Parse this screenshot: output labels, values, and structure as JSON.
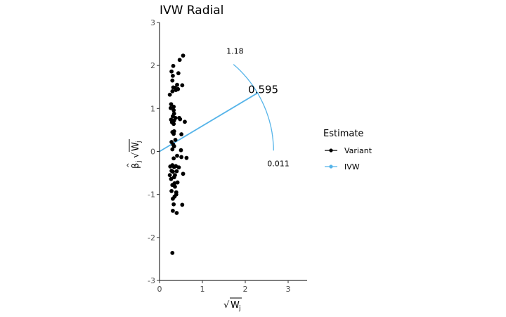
{
  "chart_data": {
    "type": "scatter",
    "title": "IVW Radial",
    "xlabel_base": "W",
    "xlabel_sub": "j",
    "ylabel_beta": "β",
    "ylabel_sub": "j",
    "ylabel_W": "W",
    "ylabel_Wsub": "j",
    "xlim": [
      0,
      3.4
    ],
    "ylim": [
      -3,
      3
    ],
    "xticks": [
      "0",
      "1",
      "2",
      "3"
    ],
    "xtick_values": [
      0,
      1,
      2,
      3
    ],
    "yticks": [
      "-3",
      "-2",
      "-1",
      "0",
      "1",
      "2",
      "3"
    ],
    "ytick_values": [
      -3,
      -2,
      -1,
      0,
      1,
      2,
      3
    ],
    "series": [
      {
        "name": "Variant",
        "color": "#000000",
        "points": [
          [
            0.55,
            2.23
          ],
          [
            0.47,
            2.13
          ],
          [
            0.32,
            1.99
          ],
          [
            0.28,
            1.86
          ],
          [
            0.44,
            1.82
          ],
          [
            0.31,
            1.76
          ],
          [
            0.3,
            1.65
          ],
          [
            0.41,
            1.55
          ],
          [
            0.53,
            1.54
          ],
          [
            0.32,
            1.49
          ],
          [
            0.36,
            1.48
          ],
          [
            0.43,
            1.45
          ],
          [
            0.38,
            1.43
          ],
          [
            0.3,
            1.4
          ],
          [
            0.24,
            1.32
          ],
          [
            0.27,
            1.1
          ],
          [
            0.33,
            1.04
          ],
          [
            0.26,
            1.01
          ],
          [
            0.33,
            0.96
          ],
          [
            0.34,
            0.88
          ],
          [
            0.31,
            0.82
          ],
          [
            0.37,
            0.78
          ],
          [
            0.46,
            0.78
          ],
          [
            0.48,
            0.75
          ],
          [
            0.27,
            0.74
          ],
          [
            0.34,
            0.72
          ],
          [
            0.29,
            0.68
          ],
          [
            0.59,
            0.69
          ],
          [
            0.33,
            0.64
          ],
          [
            0.34,
            0.47
          ],
          [
            0.3,
            0.45
          ],
          [
            0.33,
            0.41
          ],
          [
            0.51,
            0.4
          ],
          [
            0.37,
            0.27
          ],
          [
            0.28,
            0.22
          ],
          [
            0.32,
            0.16
          ],
          [
            0.34,
            0.12
          ],
          [
            0.3,
            0.05
          ],
          [
            0.5,
            0.03
          ],
          [
            0.41,
            -0.1
          ],
          [
            0.51,
            -0.13
          ],
          [
            0.63,
            -0.15
          ],
          [
            0.33,
            -0.16
          ],
          [
            0.25,
            -0.35
          ],
          [
            0.3,
            -0.32
          ],
          [
            0.34,
            -0.36
          ],
          [
            0.38,
            -0.34
          ],
          [
            0.45,
            -0.37
          ],
          [
            0.28,
            -0.45
          ],
          [
            0.31,
            -0.47
          ],
          [
            0.4,
            -0.46
          ],
          [
            0.55,
            -0.52
          ],
          [
            0.24,
            -0.55
          ],
          [
            0.36,
            -0.55
          ],
          [
            0.34,
            -0.6
          ],
          [
            0.27,
            -0.64
          ],
          [
            0.42,
            -0.72
          ],
          [
            0.35,
            -0.74
          ],
          [
            0.3,
            -0.78
          ],
          [
            0.36,
            -0.82
          ],
          [
            0.28,
            -0.92
          ],
          [
            0.39,
            -0.95
          ],
          [
            0.39,
            -1.0
          ],
          [
            0.35,
            -1.05
          ],
          [
            0.31,
            -1.1
          ],
          [
            0.53,
            -1.24
          ],
          [
            0.33,
            -1.23
          ],
          [
            0.31,
            -1.38
          ],
          [
            0.4,
            -1.43
          ],
          [
            0.3,
            -2.36
          ]
        ]
      },
      {
        "name": "IVW",
        "color": "#56B4E9",
        "line_slope": 0.595,
        "line_x_end": 2.3
      }
    ],
    "arc": {
      "radius": 2.66,
      "angle_start_deg": 0.45,
      "angle_end_deg": 49.6
    },
    "annotations": [
      {
        "text": "1.18",
        "x": 1.76,
        "y": 2.34
      },
      {
        "text": "0.595",
        "x": 2.42,
        "y": 1.42
      },
      {
        "text": "0.011",
        "x": 2.77,
        "y": -0.28
      }
    ],
    "legend": {
      "title": "Estimate",
      "position": "right",
      "items": [
        "Variant",
        "IVW"
      ]
    },
    "grid": false
  }
}
